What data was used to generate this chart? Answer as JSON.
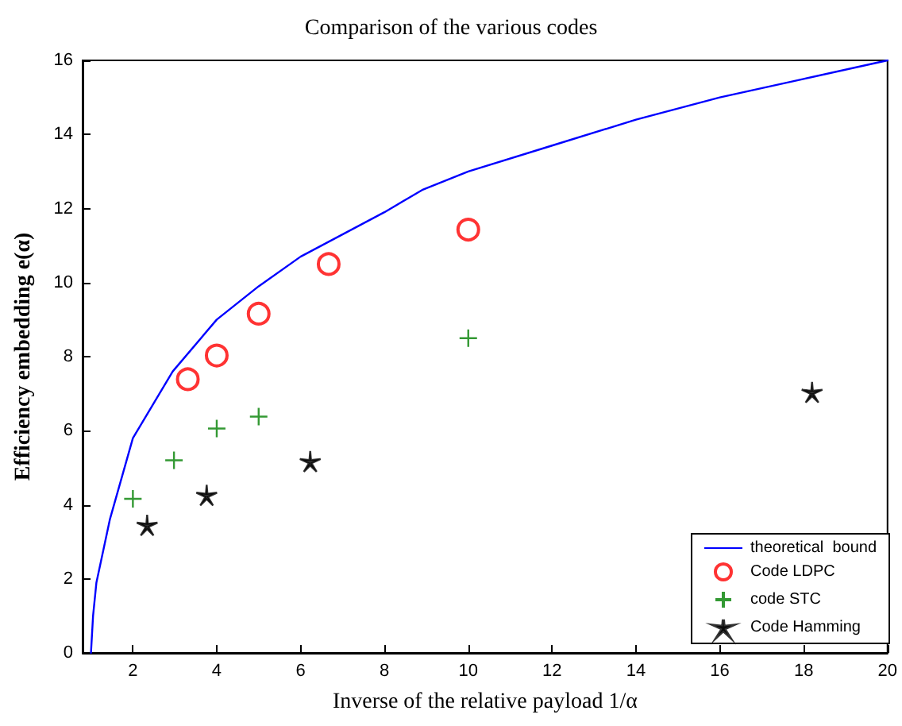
{
  "chart_data": {
    "type": "scatter",
    "title": "Comparison of the various codes",
    "xlabel": "Inverse of the relative payload 1/α",
    "ylabel": "Efficiency embedding e(α)",
    "xlim": [
      0.8,
      20
    ],
    "xticks": [
      2,
      4,
      6,
      8,
      10,
      12,
      14,
      16,
      18,
      20
    ],
    "ylim": [
      0,
      16
    ],
    "yticks": [
      0,
      2,
      4,
      6,
      8,
      10,
      12,
      14,
      16
    ],
    "grid": false,
    "legend": "bottom right",
    "series": [
      {
        "name": "theoretical  bound",
        "type": "line",
        "marker": "none",
        "line_style": "solid",
        "color": "#0000ff",
        "x": [
          1,
          1.05,
          1.13,
          1.45,
          2,
          2.95,
          4,
          5,
          6,
          8,
          8.9,
          10,
          12,
          14,
          16,
          18,
          20
        ],
        "values": [
          0,
          1,
          1.9,
          3.6,
          5.8,
          7.6,
          9,
          9.9,
          10.7,
          11.9,
          12.5,
          13,
          13.7,
          14.4,
          15,
          15.5,
          16
        ]
      },
      {
        "name": "Code LDPC",
        "marker": "circle",
        "color": "#ff0000",
        "x": [
          3.31,
          4,
          5,
          6.67,
          10
        ],
        "values": [
          7.39,
          8.03,
          9.16,
          10.5,
          11.43
        ]
      },
      {
        "name": "code STC",
        "marker": "cross",
        "color": "#008000",
        "x": [
          2,
          2.98,
          4,
          5,
          10
        ],
        "values": [
          4.16,
          5.2,
          6.06,
          6.38,
          8.5
        ]
      },
      {
        "name": "Code Hamming",
        "marker": "star",
        "color": "#000000",
        "x": [
          2.34,
          3.76,
          6.23,
          18.2
        ],
        "values": [
          3.45,
          4.26,
          5.17,
          7.04
        ]
      }
    ]
  }
}
